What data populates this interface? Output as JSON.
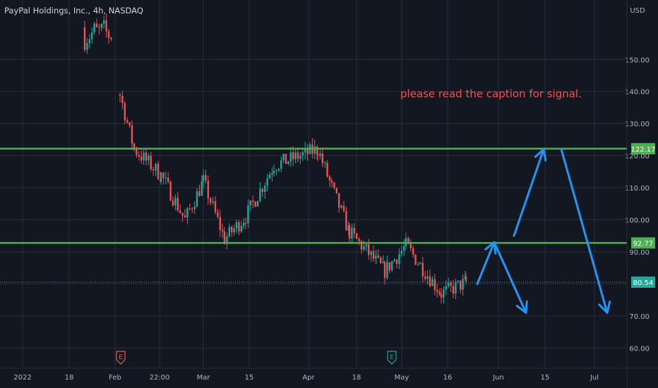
{
  "chart_data": {
    "type": "candlestick",
    "title": "PayPal Holdings, Inc., 4h, NASDAQ",
    "currency": "USD",
    "annotation": "please read the caption for signal.",
    "y_range": [
      57,
      167
    ],
    "y_ticks": [
      {
        "value": 60,
        "label": "60.00"
      },
      {
        "value": 70,
        "label": "70.00"
      },
      {
        "value": 80,
        "label": ""
      },
      {
        "value": 90,
        "label": "90.00"
      },
      {
        "value": 100,
        "label": "100.00"
      },
      {
        "value": 110,
        "label": "110.00"
      },
      {
        "value": 120,
        "label": "120.00"
      },
      {
        "value": 130,
        "label": "130.00"
      },
      {
        "value": 140,
        "label": "140.00"
      },
      {
        "value": 150,
        "label": "150.00"
      }
    ],
    "x_ticks": [
      "2022",
      "18",
      "Feb",
      "22:00",
      "Mar",
      "15",
      "Apr",
      "18",
      "May",
      "16",
      "Jun",
      "15",
      "Jul"
    ],
    "horizontal_levels": [
      {
        "value": 122.17,
        "label": "122.17",
        "color": "#4caf50"
      },
      {
        "value": 92.77,
        "label": "92.77",
        "color": "#4caf50"
      }
    ],
    "last_price": {
      "value": 80.54,
      "label": "80.54",
      "color": "#26a69a"
    },
    "event_markers": [
      {
        "label": "E",
        "date": "Feb",
        "color": "#ef5350"
      },
      {
        "label": "E",
        "date": "May",
        "color": "#26a69a"
      }
    ],
    "colors": {
      "up": "#26a69a",
      "down": "#ef5350",
      "projection": "#2196f3",
      "grid": "#2a2e39",
      "background": "#131722"
    },
    "price_path": [
      {
        "date": "late Jan",
        "close": 160
      },
      {
        "date": "early Feb",
        "close": 139
      },
      {
        "date": "Feb",
        "close": 122
      },
      {
        "date": "mid Feb",
        "close": 114
      },
      {
        "date": "late Feb",
        "close": 100
      },
      {
        "date": "late Feb",
        "close": 112
      },
      {
        "date": "early Mar",
        "close": 94
      },
      {
        "date": "mid Mar",
        "close": 101
      },
      {
        "date": "late Mar",
        "close": 117
      },
      {
        "date": "Apr",
        "close": 122
      },
      {
        "date": "mid Apr",
        "close": 110
      },
      {
        "date": "late Apr",
        "close": 96
      },
      {
        "date": "early May",
        "close": 84
      },
      {
        "date": "May",
        "close": 92
      },
      {
        "date": "mid May",
        "close": 77
      },
      {
        "date": "late May",
        "close": 80.54
      }
    ],
    "projection_path": [
      {
        "date": "late May",
        "value": 80
      },
      {
        "date": "Jun",
        "value": 93
      },
      {
        "date": "early Jun",
        "value": 71
      },
      {
        "date": "early Jun",
        "value": 95
      },
      {
        "date": "mid Jun",
        "value": 122
      },
      {
        "date": "mid Jun",
        "value": 122
      },
      {
        "date": "early Jul",
        "value": 71
      }
    ]
  }
}
